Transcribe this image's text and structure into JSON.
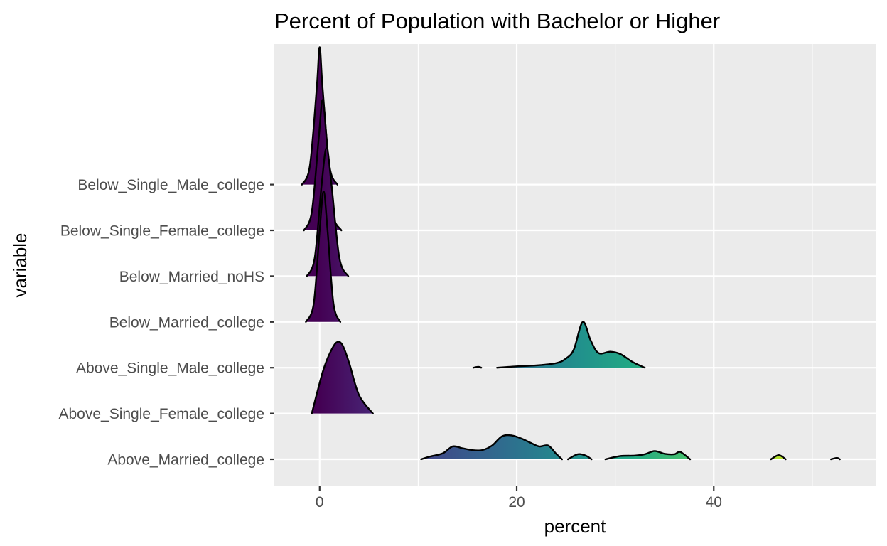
{
  "chart_data": {
    "type": "ridgeline",
    "title": "Percent of Population with Bachelor or Higher",
    "xlabel": "percent",
    "ylabel": "variable",
    "xlim": [
      -4.6,
      56.5
    ],
    "x_ticks": [
      0,
      20,
      40
    ],
    "grid": true,
    "fill": "gradient by percent (viridis)",
    "categories": [
      "Above_Married_college",
      "Above_Single_Female_college",
      "Above_Single_Male_college",
      "Below_Married_college",
      "Below_Married_noHS",
      "Below_Single_Female_college",
      "Below_Single_Male_college"
    ],
    "series": [
      {
        "category": "Above_Married_college",
        "segments": [
          [
            [
              10.3,
              0
            ],
            [
              11.2,
              0.06
            ],
            [
              12.5,
              0.13
            ],
            [
              13.5,
              0.28
            ],
            [
              14.5,
              0.24
            ],
            [
              15.5,
              0.2
            ],
            [
              16.5,
              0.2
            ],
            [
              17.5,
              0.3
            ],
            [
              18.5,
              0.5
            ],
            [
              19.5,
              0.52
            ],
            [
              20.5,
              0.45
            ],
            [
              21.5,
              0.35
            ],
            [
              22.3,
              0.28
            ],
            [
              23.2,
              0.3
            ],
            [
              24.0,
              0.12
            ],
            [
              24.6,
              0
            ]
          ],
          [
            [
              25.2,
              0
            ],
            [
              26.2,
              0.11
            ],
            [
              27.0,
              0.08
            ],
            [
              27.6,
              0
            ]
          ],
          [
            [
              29.0,
              0
            ],
            [
              30.5,
              0.07
            ],
            [
              32.0,
              0.08
            ],
            [
              33.0,
              0.11
            ],
            [
              34.0,
              0.18
            ],
            [
              35.0,
              0.12
            ],
            [
              36.0,
              0.11
            ],
            [
              36.6,
              0.16
            ],
            [
              37.6,
              0
            ]
          ],
          [
            [
              45.8,
              0
            ],
            [
              46.6,
              0.09
            ],
            [
              47.3,
              0
            ]
          ],
          [
            [
              51.9,
              0
            ],
            [
              52.5,
              0.03
            ],
            [
              52.8,
              0
            ]
          ]
        ]
      },
      {
        "category": "Above_Single_Female_college",
        "segments": [
          [
            [
              -0.8,
              0
            ],
            [
              0.3,
              0.9
            ],
            [
              1.0,
              1.3
            ],
            [
              1.7,
              1.55
            ],
            [
              2.3,
              1.5
            ],
            [
              3.0,
              1.1
            ],
            [
              4.0,
              0.4
            ],
            [
              5.4,
              0
            ]
          ]
        ]
      },
      {
        "category": "Above_Single_Male_college",
        "segments": [
          [
            [
              15.6,
              0
            ],
            [
              16.1,
              0.02
            ],
            [
              16.4,
              0
            ]
          ],
          [
            [
              18.0,
              0
            ],
            [
              20.0,
              0.03
            ],
            [
              22.0,
              0.05
            ],
            [
              24.0,
              0.1
            ],
            [
              25.0,
              0.2
            ],
            [
              25.8,
              0.4
            ],
            [
              26.7,
              1.0
            ],
            [
              27.5,
              0.6
            ],
            [
              28.3,
              0.32
            ],
            [
              29.5,
              0.35
            ],
            [
              30.5,
              0.3
            ],
            [
              31.8,
              0.12
            ],
            [
              33.0,
              0
            ]
          ]
        ]
      },
      {
        "category": "Below_Married_college",
        "segments": [
          [
            [
              -1.4,
              0
            ],
            [
              -0.6,
              0.4
            ],
            [
              0.0,
              2.0
            ],
            [
              0.4,
              2.85
            ],
            [
              0.8,
              2.0
            ],
            [
              1.4,
              0.4
            ],
            [
              2.1,
              0
            ]
          ]
        ]
      },
      {
        "category": "Below_Married_noHS",
        "segments": [
          [
            [
              -1.3,
              0
            ],
            [
              -0.5,
              0.4
            ],
            [
              0.2,
              2.0
            ],
            [
              0.7,
              2.8
            ],
            [
              1.2,
              2.0
            ],
            [
              2.0,
              0.4
            ],
            [
              2.9,
              0
            ]
          ]
        ]
      },
      {
        "category": "Below_Single_Female_college",
        "segments": [
          [
            [
              -1.6,
              0
            ],
            [
              -0.8,
              0.4
            ],
            [
              -0.1,
              2.0
            ],
            [
              0.3,
              2.85
            ],
            [
              0.7,
              2.0
            ],
            [
              1.3,
              0.4
            ],
            [
              2.2,
              0
            ]
          ]
        ]
      },
      {
        "category": "Below_Single_Male_college",
        "segments": [
          [
            [
              -1.8,
              0
            ],
            [
              -1.0,
              0.4
            ],
            [
              -0.3,
              2.1
            ],
            [
              0.0,
              3.0
            ],
            [
              0.3,
              2.1
            ],
            [
              1.0,
              0.4
            ],
            [
              1.8,
              0
            ]
          ]
        ]
      }
    ]
  }
}
